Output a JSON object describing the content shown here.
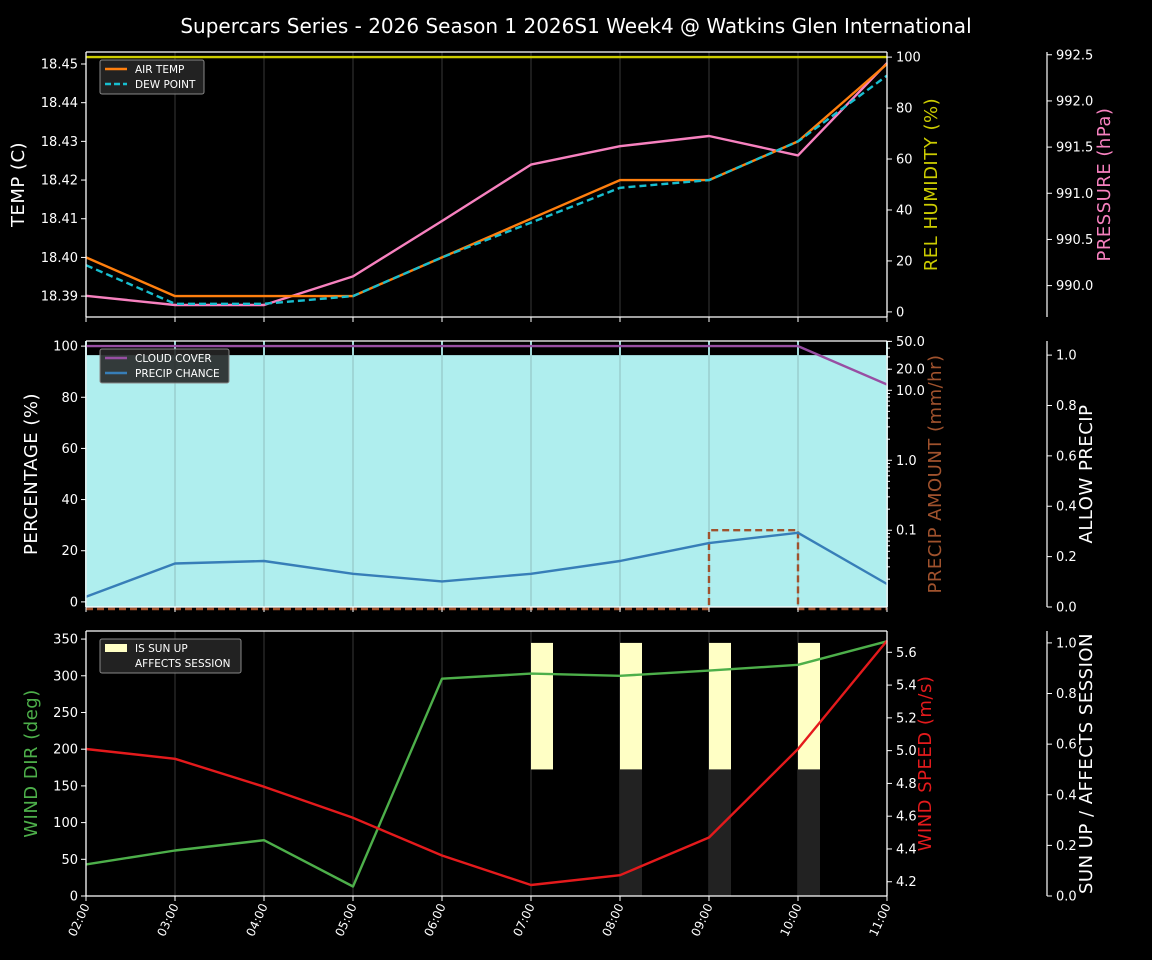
{
  "title": "Supercars Series - 2026 Season 1 2026S1 Week4 @ Watkins Glen International",
  "chart_data": [
    {
      "type": "line",
      "x": [
        "02:00",
        "03:00",
        "04:00",
        "05:00",
        "06:00",
        "07:00",
        "08:00",
        "09:00",
        "10:00",
        "11:00"
      ],
      "x_tick_labels_shown": false,
      "grid": "vertical",
      "legend": "top-left",
      "axes": {
        "left": {
          "label": "TEMP (C)",
          "color": "#ffffff",
          "range": [
            18.3846,
            18.4531
          ],
          "ticks": [
            "18.39",
            "18.40",
            "18.41",
            "18.42",
            "18.43",
            "18.44",
            "18.45"
          ]
        },
        "right": {
          "label": "REL HUMIDITY (%)",
          "color": "#cccc00",
          "range": [
            -2,
            102
          ],
          "ticks": [
            "0",
            "20",
            "40",
            "60",
            "80",
            "100"
          ]
        },
        "right2": {
          "label": "PRESSURE (hPa)",
          "color": "#f781bf",
          "range": [
            989.66,
            992.53
          ],
          "ticks": [
            "990.0",
            "990.5",
            "991.0",
            "991.5",
            "992.0",
            "992.5"
          ]
        }
      },
      "series": [
        {
          "axis": "right",
          "color": "#cccc00",
          "style": "solid",
          "values": [
            100,
            100,
            100,
            100,
            100,
            100,
            100,
            100,
            100,
            100
          ]
        },
        {
          "axis": "right2",
          "color": "#f781bf",
          "style": "solid",
          "values": [
            989.89,
            989.79,
            989.79,
            990.1,
            990.7,
            991.31,
            991.51,
            991.62,
            991.41,
            992.41
          ]
        },
        {
          "name": "AIR TEMP",
          "axis": "left",
          "color": "#ff7f0e",
          "style": "solid",
          "values": [
            18.4,
            18.39,
            18.39,
            18.39,
            18.4,
            18.41,
            18.42,
            18.42,
            18.43,
            18.45
          ]
        },
        {
          "name": "DEW POINT",
          "axis": "left",
          "color": "#17becf",
          "style": "dashed",
          "values": [
            18.398,
            18.388,
            18.388,
            18.39,
            18.4,
            18.409,
            18.418,
            18.42,
            18.43,
            18.447
          ]
        }
      ]
    },
    {
      "type": "line",
      "x": [
        "02:00",
        "03:00",
        "04:00",
        "05:00",
        "06:00",
        "07:00",
        "08:00",
        "09:00",
        "10:00",
        "11:00"
      ],
      "x_tick_labels_shown": false,
      "grid": "vertical",
      "legend": "top-left",
      "axes": {
        "left": {
          "label": "PERCENTAGE (%)",
          "color": "#ffffff",
          "range": [
            -2,
            102
          ],
          "ticks": [
            "0",
            "20",
            "40",
            "60",
            "80",
            "100"
          ]
        },
        "right": {
          "label": "PRECIP AMOUNT (mm/hr)",
          "color": "#a0522d",
          "scale": "log",
          "range": [
            0.008,
            50.6
          ],
          "ticks": [
            "0.1",
            "1.0",
            "10.0",
            "20.0",
            "50.0"
          ]
        },
        "right2": {
          "label": "ALLOW PRECIP",
          "color": "#ffffff",
          "range": [
            0,
            1.056
          ],
          "ticks": [
            "0.0",
            "0.2",
            "0.4",
            "0.6",
            "0.8",
            "1.0"
          ]
        }
      },
      "series": [
        {
          "axis": "right2",
          "type": "area",
          "color": "#afeeee",
          "values": [
            1,
            1,
            1,
            1,
            1,
            1,
            1,
            1,
            1,
            1
          ]
        },
        {
          "axis": "right",
          "color": "#a0522d",
          "style": "dashed",
          "step": "post",
          "values": [
            0,
            0,
            0,
            0,
            0,
            0,
            0,
            0.1,
            0,
            0
          ]
        },
        {
          "name": "CLOUD COVER",
          "axis": "left",
          "color": "#984ea3",
          "style": "solid",
          "values": [
            100,
            100,
            100,
            100,
            100,
            100,
            100,
            100,
            100,
            85
          ]
        },
        {
          "name": "PRECIP CHANCE",
          "axis": "left",
          "color": "#377eb8",
          "style": "solid",
          "values": [
            2,
            15,
            16,
            11,
            8,
            11,
            16,
            23,
            27,
            7
          ]
        }
      ]
    },
    {
      "type": "line",
      "x": [
        "02:00",
        "03:00",
        "04:00",
        "05:00",
        "06:00",
        "07:00",
        "08:00",
        "09:00",
        "10:00",
        "11:00"
      ],
      "x_tick_labels_shown": true,
      "grid": "vertical",
      "legend": "top-left",
      "axes": {
        "left": {
          "label": "WIND DIR (deg)",
          "color": "#4daf4a",
          "range": [
            0,
            361
          ],
          "ticks": [
            "0",
            "50",
            "100",
            "150",
            "200",
            "250",
            "300",
            "350"
          ]
        },
        "right": {
          "label": "WIND SPEED (m/s)",
          "color": "#e41a1c",
          "range": [
            4.113,
            5.73
          ],
          "ticks": [
            "4.2",
            "4.4",
            "4.6",
            "4.8",
            "5.0",
            "5.2",
            "5.4",
            "5.6"
          ]
        },
        "right2": {
          "label": "SUN UP / AFFECTS SESSION",
          "color": "#ffffff",
          "range": [
            0,
            1.047
          ],
          "ticks": [
            "0.0",
            "0.2",
            "0.4",
            "0.6",
            "0.8",
            "1.0"
          ]
        }
      },
      "series": [
        {
          "name": "IS SUN UP",
          "axis": "right2",
          "type": "bar",
          "part": "upper",
          "color": "#ffffc5",
          "values": [
            0,
            0,
            0,
            0,
            0,
            1,
            1,
            1,
            1,
            0
          ]
        },
        {
          "name": "AFFECTS SESSION",
          "axis": "right2",
          "type": "bar",
          "part": "lower",
          "color": "#222222",
          "values": [
            0,
            0,
            0,
            0,
            0,
            0,
            1,
            1,
            1,
            0
          ]
        },
        {
          "axis": "left",
          "color": "#4daf4a",
          "style": "solid",
          "values": [
            43,
            62,
            76,
            13,
            296,
            303,
            300,
            307,
            315,
            347
          ]
        },
        {
          "axis": "right",
          "color": "#e41a1c",
          "style": "solid",
          "values": [
            5.01,
            4.95,
            4.78,
            4.59,
            4.36,
            4.18,
            4.24,
            4.47,
            5.01,
            5.67
          ]
        }
      ]
    }
  ]
}
